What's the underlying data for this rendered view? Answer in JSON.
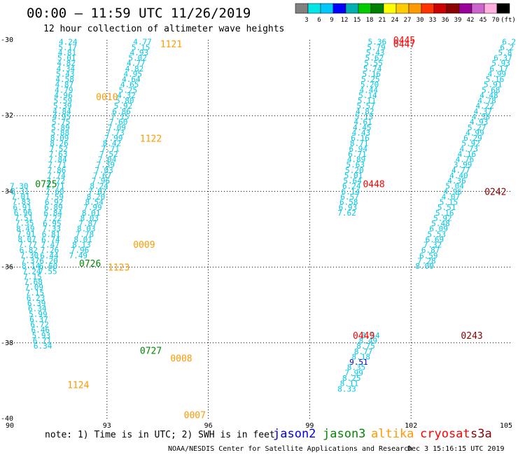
{
  "chart_data": {
    "type": "scatter",
    "title": "00:00 – 11:59 UTC 11/26/2019",
    "subtitle": "12 hour collection of altimeter wave heights",
    "xlim": [
      90,
      105
    ],
    "ylim": [
      -40,
      -30
    ],
    "x_ticks": [
      "90",
      "93",
      "96",
      "99",
      "102",
      "105"
    ],
    "y_ticks": [
      "-30",
      "-32",
      "-34",
      "-36",
      "-38",
      "-40"
    ],
    "grid": "dotted",
    "colorbar": {
      "labels": [
        "3",
        "6",
        "9",
        "12",
        "15",
        "18",
        "21",
        "24",
        "27",
        "30",
        "33",
        "36",
        "39",
        "42",
        "45",
        "70",
        "(ft)"
      ],
      "colors": [
        "#808080",
        "#00e5e5",
        "#00c8ff",
        "#0000ff",
        "#00b0b0",
        "#00cc00",
        "#008000",
        "#ffff00",
        "#ffcc00",
        "#ff9900",
        "#ff3300",
        "#cc0000",
        "#8b0000",
        "#990099",
        "#cc66cc",
        "#ffb0e0",
        "#000000"
      ]
    },
    "satellite_colors": {
      "jason2": "#0000ee",
      "jason3": "#008800",
      "altika": "#ff9900",
      "cryosat": "#ff0000",
      "s3a": "#8b0000"
    },
    "passes": [
      {
        "label": "1121",
        "sat": "altika",
        "x": 94.9,
        "y": -30.1
      },
      {
        "label": "0010",
        "sat": "altika",
        "x": 93.0,
        "y": -31.5
      },
      {
        "label": "1122",
        "sat": "altika",
        "x": 94.3,
        "y": -32.6
      },
      {
        "label": "0725",
        "sat": "jason3",
        "x": 91.2,
        "y": -33.8
      },
      {
        "label": "0009",
        "sat": "altika",
        "x": 94.1,
        "y": -35.4
      },
      {
        "label": "0726",
        "sat": "jason3",
        "x": 92.5,
        "y": -35.9
      },
      {
        "label": "1123",
        "sat": "altika",
        "x": 93.35,
        "y": -36.0
      },
      {
        "label": "0727",
        "sat": "jason3",
        "x": 94.3,
        "y": -38.2
      },
      {
        "label": "0008",
        "sat": "altika",
        "x": 95.2,
        "y": -38.4
      },
      {
        "label": "1124",
        "sat": "altika",
        "x": 92.15,
        "y": -39.1
      },
      {
        "label": "0007",
        "sat": "altika",
        "x": 95.6,
        "y": -39.9
      },
      {
        "label": "0445",
        "sat": "cryosat",
        "x": 101.8,
        "y": -30.0
      },
      {
        "label": "0447",
        "sat": "cryosat",
        "x": 101.8,
        "y": -30.1
      },
      {
        "label": "0448",
        "sat": "cryosat",
        "x": 100.9,
        "y": -33.8
      },
      {
        "label": "0449",
        "sat": "cryosat",
        "x": 100.6,
        "y": -37.8
      },
      {
        "label": "0242",
        "sat": "s3a",
        "x": 104.5,
        "y": -34.0
      },
      {
        "label": "0243",
        "sat": "s3a",
        "x": 103.8,
        "y": -37.8
      }
    ],
    "tracks": [
      {
        "x_top": 91.85,
        "x_bottom": 91.25,
        "y_top": -30.05,
        "y_step": 0.141,
        "values": [
          "4.24",
          "5.17",
          "4.81",
          "5.01",
          "4.82",
          "4.34",
          "5.43",
          "4.58",
          "4.87",
          "4.79",
          "4.96",
          "5.59",
          "5.39",
          "4.84",
          "4.95",
          "5.75",
          "5.89",
          "5.88",
          "8.09",
          "8.26",
          "7.52",
          "7.63",
          "7.84",
          "7.71",
          "7.86",
          "7.74",
          "7.72",
          "7.71",
          "7.60",
          "7.59",
          "6.92",
          "6.89",
          "6.84",
          "7.22",
          "6.95",
          "7.33",
          "6.81",
          "6.74",
          "7.47",
          "7.26",
          "6.44",
          "6.20",
          "6.60",
          "7.55"
        ]
      },
      {
        "x_top": 94.05,
        "x_bottom": 92.15,
        "y_top": -30.05,
        "y_step": 0.141,
        "values": [
          "4.77",
          "5.15",
          "4.93",
          "5.02",
          "4.77",
          "4.82",
          "4.95",
          "4.64",
          "4.65",
          "5.25",
          "4.32",
          "5.80",
          "5.92",
          "6.86",
          "7.15",
          "7.60",
          "7.09",
          "7.73",
          "7.99",
          "8.42",
          "7.71",
          "7.52",
          "7.04",
          "7.39",
          "7.03",
          "7.67",
          "7.96",
          "8.24",
          "7.87",
          "8.20",
          "8.54",
          "7.99",
          "8.01",
          "8.03",
          "7.87",
          "8.03",
          "7.78",
          "8.01",
          "8.13",
          "7.96",
          "7.49"
        ]
      },
      {
        "x_top": 90.4,
        "x_bottom": 91.1,
        "y_top": -33.85,
        "y_step": 0.141,
        "values": [
          "7.30",
          "8.31",
          "7.01",
          "7.83",
          "6.91",
          "6.96",
          "7.51",
          "7.35",
          "8.49",
          "7.91",
          "8.07",
          "7.77",
          "6.82",
          "7.30",
          "7.37",
          "8.14",
          "7.24",
          "7.15",
          "7.68",
          "7.09",
          "7.15",
          "6.23",
          "6.39",
          "6.34",
          "5.99",
          "6.37",
          "6.72",
          "6.46",
          "5.93",
          "6.71",
          "6.34"
        ]
      },
      {
        "x_top": 101.0,
        "x_bottom": 100.1,
        "y_top": -30.05,
        "y_step": 0.141,
        "values": [
          "5.36",
          "5.79",
          "5.43",
          "5.62",
          "5.55",
          "5.74",
          "5.16",
          "5.25",
          "5.20",
          "4.44",
          "5.14",
          "5.11",
          "5.57",
          "4.82",
          "5.13",
          "4.61",
          "4.45",
          "4.43",
          "6.16",
          "8.71",
          "6.94",
          "6.71",
          "4.89",
          "5.63",
          "5.20",
          "5.01",
          "5.64",
          "6.24",
          "6.14",
          "6.57",
          "6.58",
          "6.93",
          "7.62"
        ]
      },
      {
        "x_top": 100.8,
        "x_bottom": 100.1,
        "y_top": -37.8,
        "y_step": 0.141,
        "values": [
          "8.54",
          "8.49",
          "8.75",
          "8.77",
          "8.18",
          "9.51",
          "8.35",
          "7.99",
          "8.25",
          "8.11",
          "8.33"
        ]
      },
      {
        "x_top": 104.9,
        "x_bottom": 102.4,
        "y_top": -30.05,
        "y_step": 0.141,
        "values": [
          "6.2",
          "6.2",
          "5.8",
          "6.37",
          "5.93",
          "6.17",
          "4.99",
          "5.16",
          "5.91",
          "5.68",
          "4.48",
          "4.78",
          "4.22",
          "4.37",
          "4.38",
          "4.93",
          "5.27",
          "4.99",
          "6.29",
          "5.92",
          "4.73",
          "4.16",
          "4.76",
          "3.99",
          "4.77",
          "4.40",
          "4.36",
          "5.04",
          "4.96",
          "4.07",
          "5.15",
          "5.51",
          "5.16",
          "5.92",
          "5.48",
          "6.09",
          "5.53",
          "6.69",
          "7.32",
          "6.87",
          "6.59",
          "7.28",
          "8.00"
        ]
      }
    ]
  },
  "footer": {
    "note": "note: 1) Time is in UTC; 2) SWH is in feet",
    "credit": "NOAA/NESDIS Center for Satellite Applications and Research",
    "timestamp": "Dec  3 15:16:15 UTC 2019",
    "satellites": [
      "jason2",
      "jason3",
      "altika",
      "cryosat",
      "s3a"
    ]
  }
}
